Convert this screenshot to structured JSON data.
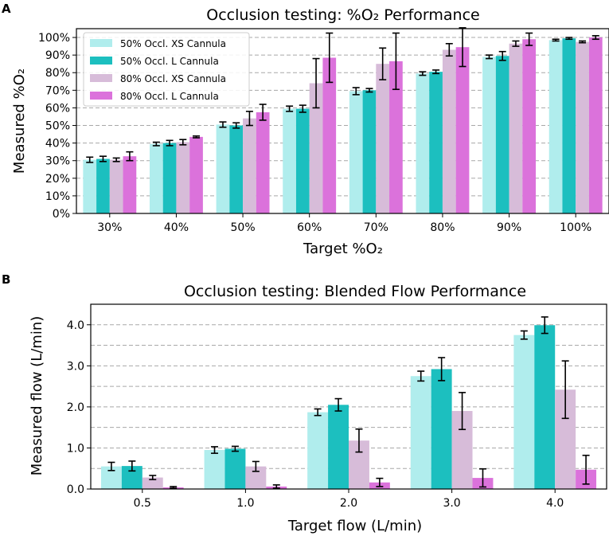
{
  "colors": {
    "series": [
      "#b0eded",
      "#1cbfbf",
      "#d7bcd9",
      "#db72db"
    ],
    "grid": "#a8a8a8",
    "axis": "#000000",
    "errorbar": "#000000"
  },
  "chart_data": [
    {
      "panel": "A",
      "type": "bar",
      "title": "Occlusion testing: %O₂ Performance",
      "xlabel": "Target %O₂",
      "ylabel": "Measured %O₂",
      "categories": [
        "30%",
        "40%",
        "50%",
        "60%",
        "70%",
        "80%",
        "90%",
        "100%"
      ],
      "ylim": [
        0,
        105
      ],
      "yticks": [
        0,
        10,
        20,
        30,
        40,
        50,
        60,
        70,
        80,
        90,
        100
      ],
      "ytick_labels": [
        "0%",
        "10%",
        "20%",
        "30%",
        "40%",
        "50%",
        "60%",
        "70%",
        "80%",
        "90%",
        "100%"
      ],
      "grid": "y-dashed",
      "legend_position": "top-left",
      "series": [
        {
          "name": "50% Occl. XS Cannula",
          "values": [
            30.5,
            39.5,
            50.5,
            59.5,
            69.5,
            79.5,
            89,
            98.5
          ],
          "errors": [
            1.5,
            1,
            1.5,
            1.5,
            2,
            1,
            1,
            0.5
          ]
        },
        {
          "name": "50% Occl. L Cannula",
          "values": [
            31,
            40,
            50,
            59.5,
            70,
            80.5,
            89.5,
            99.5
          ],
          "errors": [
            1.5,
            1.5,
            1.5,
            2,
            1,
            1,
            2.5,
            0.5
          ]
        },
        {
          "name": "80% Occl. XS Cannula",
          "values": [
            30.5,
            40.5,
            54,
            74,
            85,
            93,
            96.5,
            97.5
          ],
          "errors": [
            1,
            1.5,
            4,
            14,
            9,
            3.5,
            1.5,
            0.5
          ]
        },
        {
          "name": "80% Occl. L Cannula",
          "values": [
            32.5,
            43.5,
            57.5,
            88.5,
            86.5,
            94.5,
            99,
            100
          ],
          "errors": [
            2.5,
            0.5,
            4.5,
            14,
            16,
            11,
            3.5,
            1
          ]
        }
      ]
    },
    {
      "panel": "B",
      "type": "bar",
      "title": "Occlusion testing: Blended Flow Performance",
      "xlabel": "Target flow (L/min)",
      "ylabel": "Measured flow (L/min)",
      "categories": [
        "0.5",
        "1.0",
        "2.0",
        "3.0",
        "4.0"
      ],
      "ylim": [
        0,
        4.5
      ],
      "yticks": [
        0,
        1,
        2,
        3,
        4
      ],
      "ytick_labels": [
        "0.0",
        "1.0",
        "2.0",
        "3.0",
        "4.0"
      ],
      "gridlines": [
        0.5,
        1,
        1.5,
        2,
        2.5,
        3,
        3.5,
        4
      ],
      "grid": "y-dashed",
      "series": [
        {
          "name": "50% Occl. XS Cannula",
          "values": [
            0.55,
            0.95,
            1.87,
            2.75,
            3.75
          ],
          "errors": [
            0.1,
            0.08,
            0.08,
            0.12,
            0.1
          ]
        },
        {
          "name": "50% Occl. L Cannula",
          "values": [
            0.56,
            0.98,
            2.05,
            2.92,
            3.99
          ],
          "errors": [
            0.12,
            0.06,
            0.15,
            0.28,
            0.2
          ]
        },
        {
          "name": "80% Occl. XS Cannula",
          "values": [
            0.28,
            0.55,
            1.18,
            1.9,
            2.42
          ],
          "errors": [
            0.05,
            0.12,
            0.28,
            0.45,
            0.7
          ]
        },
        {
          "name": "80% Occl. L Cannula",
          "values": [
            0.04,
            0.06,
            0.16,
            0.27,
            0.47
          ],
          "errors": [
            0.02,
            0.04,
            0.1,
            0.22,
            0.35
          ]
        }
      ]
    }
  ]
}
